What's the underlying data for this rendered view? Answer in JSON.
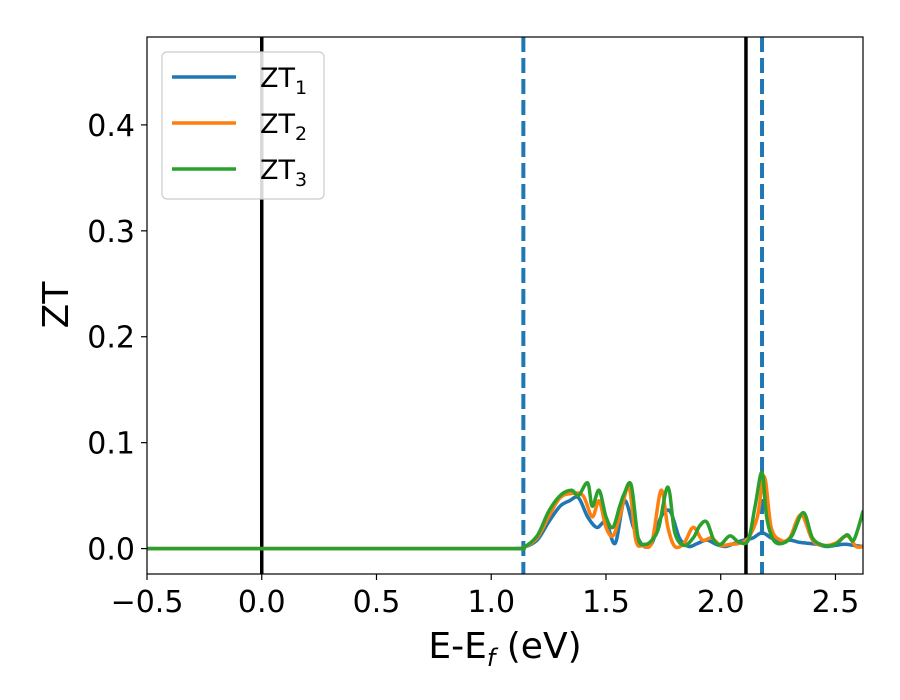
{
  "chart_data": {
    "type": "line",
    "xlabel": "E-E",
    "xlabel_sub": "f",
    "xlabel_unit": " (eV)",
    "ylabel": "ZT",
    "xlim": [
      -0.5,
      2.62
    ],
    "ylim": [
      -0.024,
      0.483
    ],
    "xticks": [
      -0.5,
      0.0,
      0.5,
      1.0,
      1.5,
      2.0,
      2.5
    ],
    "xtick_labels": [
      "−0.5",
      "0.0",
      "0.5",
      "1.0",
      "1.5",
      "2.0",
      "2.5"
    ],
    "yticks": [
      0.0,
      0.1,
      0.2,
      0.3,
      0.4
    ],
    "ytick_labels": [
      "0.0",
      "0.1",
      "0.2",
      "0.3",
      "0.4"
    ],
    "grid": false,
    "legend": {
      "position": "top-left"
    },
    "vlines": [
      {
        "x": 0.0,
        "style": "solid",
        "color": "#000000"
      },
      {
        "x": 2.11,
        "style": "solid",
        "color": "#000000"
      },
      {
        "x": 1.14,
        "style": "dashed",
        "color": "#1f77b4"
      },
      {
        "x": 2.18,
        "style": "dashed",
        "color": "#1f77b4"
      }
    ],
    "series": [
      {
        "name": "ZT",
        "subscript": "1",
        "color": "#1f77b4",
        "x": [
          -0.5,
          1.0,
          1.1,
          1.14,
          1.2,
          1.25,
          1.3,
          1.34,
          1.38,
          1.42,
          1.46,
          1.5,
          1.54,
          1.58,
          1.62,
          1.66,
          1.7,
          1.74,
          1.78,
          1.82,
          1.86,
          1.9,
          1.94,
          1.98,
          2.02,
          2.06,
          2.1,
          2.14,
          2.18,
          2.22,
          2.26,
          2.3,
          2.34,
          2.38,
          2.42,
          2.46,
          2.5,
          2.54,
          2.58,
          2.62
        ],
        "y": [
          0.0,
          0.0,
          0.0,
          0.001,
          0.008,
          0.025,
          0.04,
          0.045,
          0.048,
          0.03,
          0.02,
          0.025,
          0.005,
          0.045,
          0.02,
          0.003,
          0.005,
          0.03,
          0.035,
          0.01,
          0.002,
          0.005,
          0.008,
          0.004,
          0.002,
          0.005,
          0.008,
          0.01,
          0.015,
          0.01,
          0.006,
          0.008,
          0.006,
          0.005,
          0.004,
          0.002,
          0.003,
          0.004,
          0.003,
          0.002
        ]
      },
      {
        "name": "ZT",
        "subscript": "2",
        "color": "#ff7f0e",
        "x": [
          -0.5,
          1.0,
          1.1,
          1.14,
          1.2,
          1.25,
          1.3,
          1.35,
          1.4,
          1.44,
          1.47,
          1.5,
          1.53,
          1.56,
          1.6,
          1.63,
          1.66,
          1.7,
          1.74,
          1.77,
          1.8,
          1.84,
          1.88,
          1.92,
          1.96,
          2.0,
          2.04,
          2.08,
          2.12,
          2.16,
          2.19,
          2.22,
          2.26,
          2.3,
          2.35,
          2.4,
          2.45,
          2.5,
          2.55,
          2.59,
          2.62
        ],
        "y": [
          0.0,
          0.0,
          0.0,
          0.001,
          0.01,
          0.03,
          0.048,
          0.052,
          0.05,
          0.03,
          0.045,
          0.02,
          0.012,
          0.03,
          0.058,
          0.008,
          0.003,
          0.006,
          0.055,
          0.02,
          0.002,
          0.005,
          0.02,
          0.008,
          0.01,
          0.003,
          0.004,
          0.005,
          0.01,
          0.03,
          0.068,
          0.02,
          0.008,
          0.01,
          0.032,
          0.008,
          0.003,
          0.005,
          0.012,
          0.002,
          0.002
        ]
      },
      {
        "name": "ZT",
        "subscript": "3",
        "color": "#2ca02c",
        "x": [
          -0.5,
          1.0,
          1.1,
          1.14,
          1.2,
          1.25,
          1.3,
          1.35,
          1.38,
          1.42,
          1.44,
          1.47,
          1.5,
          1.53,
          1.56,
          1.58,
          1.61,
          1.64,
          1.67,
          1.7,
          1.73,
          1.77,
          1.8,
          1.84,
          1.88,
          1.91,
          1.94,
          1.97,
          2.0,
          2.04,
          2.08,
          2.12,
          2.15,
          2.18,
          2.2,
          2.23,
          2.27,
          2.31,
          2.36,
          2.4,
          2.45,
          2.5,
          2.55,
          2.58,
          2.62
        ],
        "y": [
          0.0,
          0.0,
          0.0,
          0.001,
          0.012,
          0.035,
          0.05,
          0.055,
          0.05,
          0.062,
          0.04,
          0.055,
          0.03,
          0.02,
          0.04,
          0.052,
          0.06,
          0.01,
          0.004,
          0.008,
          0.02,
          0.058,
          0.015,
          0.003,
          0.01,
          0.022,
          0.025,
          0.008,
          0.004,
          0.012,
          0.006,
          0.008,
          0.04,
          0.072,
          0.03,
          0.008,
          0.005,
          0.012,
          0.034,
          0.01,
          0.003,
          0.004,
          0.013,
          0.008,
          0.035
        ]
      }
    ]
  }
}
